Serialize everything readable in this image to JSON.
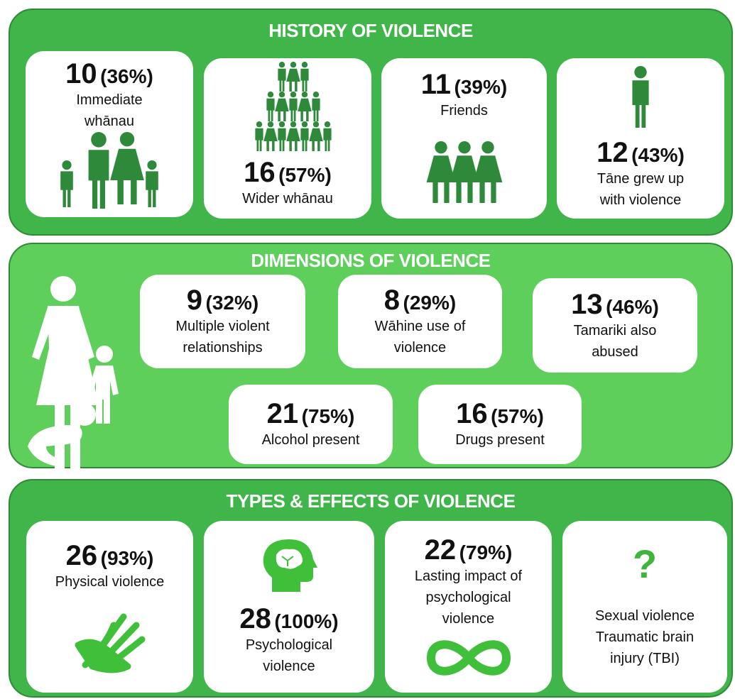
{
  "sections": [
    {
      "title": "HISTORY OF VIOLENCE",
      "cards": [
        {
          "count": "10",
          "percent": "(36%)",
          "label": [
            "Immediate",
            "whānau"
          ]
        },
        {
          "count": "16",
          "percent": "(57%)",
          "label": [
            "Wider whānau"
          ]
        },
        {
          "count": "11",
          "percent": "(39%)",
          "label": [
            "Friends"
          ]
        },
        {
          "count": "12",
          "percent": "(43%)",
          "label": [
            "Tāne grew up",
            "with violence"
          ]
        }
      ]
    },
    {
      "title": "DIMENSIONS OF VIOLENCE",
      "cards": [
        {
          "count": "9",
          "percent": "(32%)",
          "label": [
            "Multiple violent",
            "relationships"
          ]
        },
        {
          "count": "8",
          "percent": "(29%)",
          "label": [
            "Wāhine use of",
            "violence"
          ]
        },
        {
          "count": "13",
          "percent": "(46%)",
          "label": [
            "Tamariki also",
            "abused"
          ]
        },
        {
          "count": "21",
          "percent": "(75%)",
          "label": [
            "Alcohol present"
          ]
        },
        {
          "count": "16",
          "percent": "(57%)",
          "label": [
            "Drugs present"
          ]
        }
      ]
    },
    {
      "title": "TYPES & EFFECTS OF VIOLENCE",
      "cards": [
        {
          "count": "26",
          "percent": "(93%)",
          "label": [
            "Physical violence"
          ]
        },
        {
          "count": "28",
          "percent": "(100%)",
          "label": [
            "Psychological",
            "violence"
          ]
        },
        {
          "count": "22",
          "percent": "(79%)",
          "label": [
            "Lasting impact of",
            "psychological",
            "violence"
          ]
        },
        {
          "symbol": "?",
          "label": [
            "Sexual violence",
            "Traumatic brain",
            "injury (TBI)"
          ]
        }
      ]
    }
  ]
}
